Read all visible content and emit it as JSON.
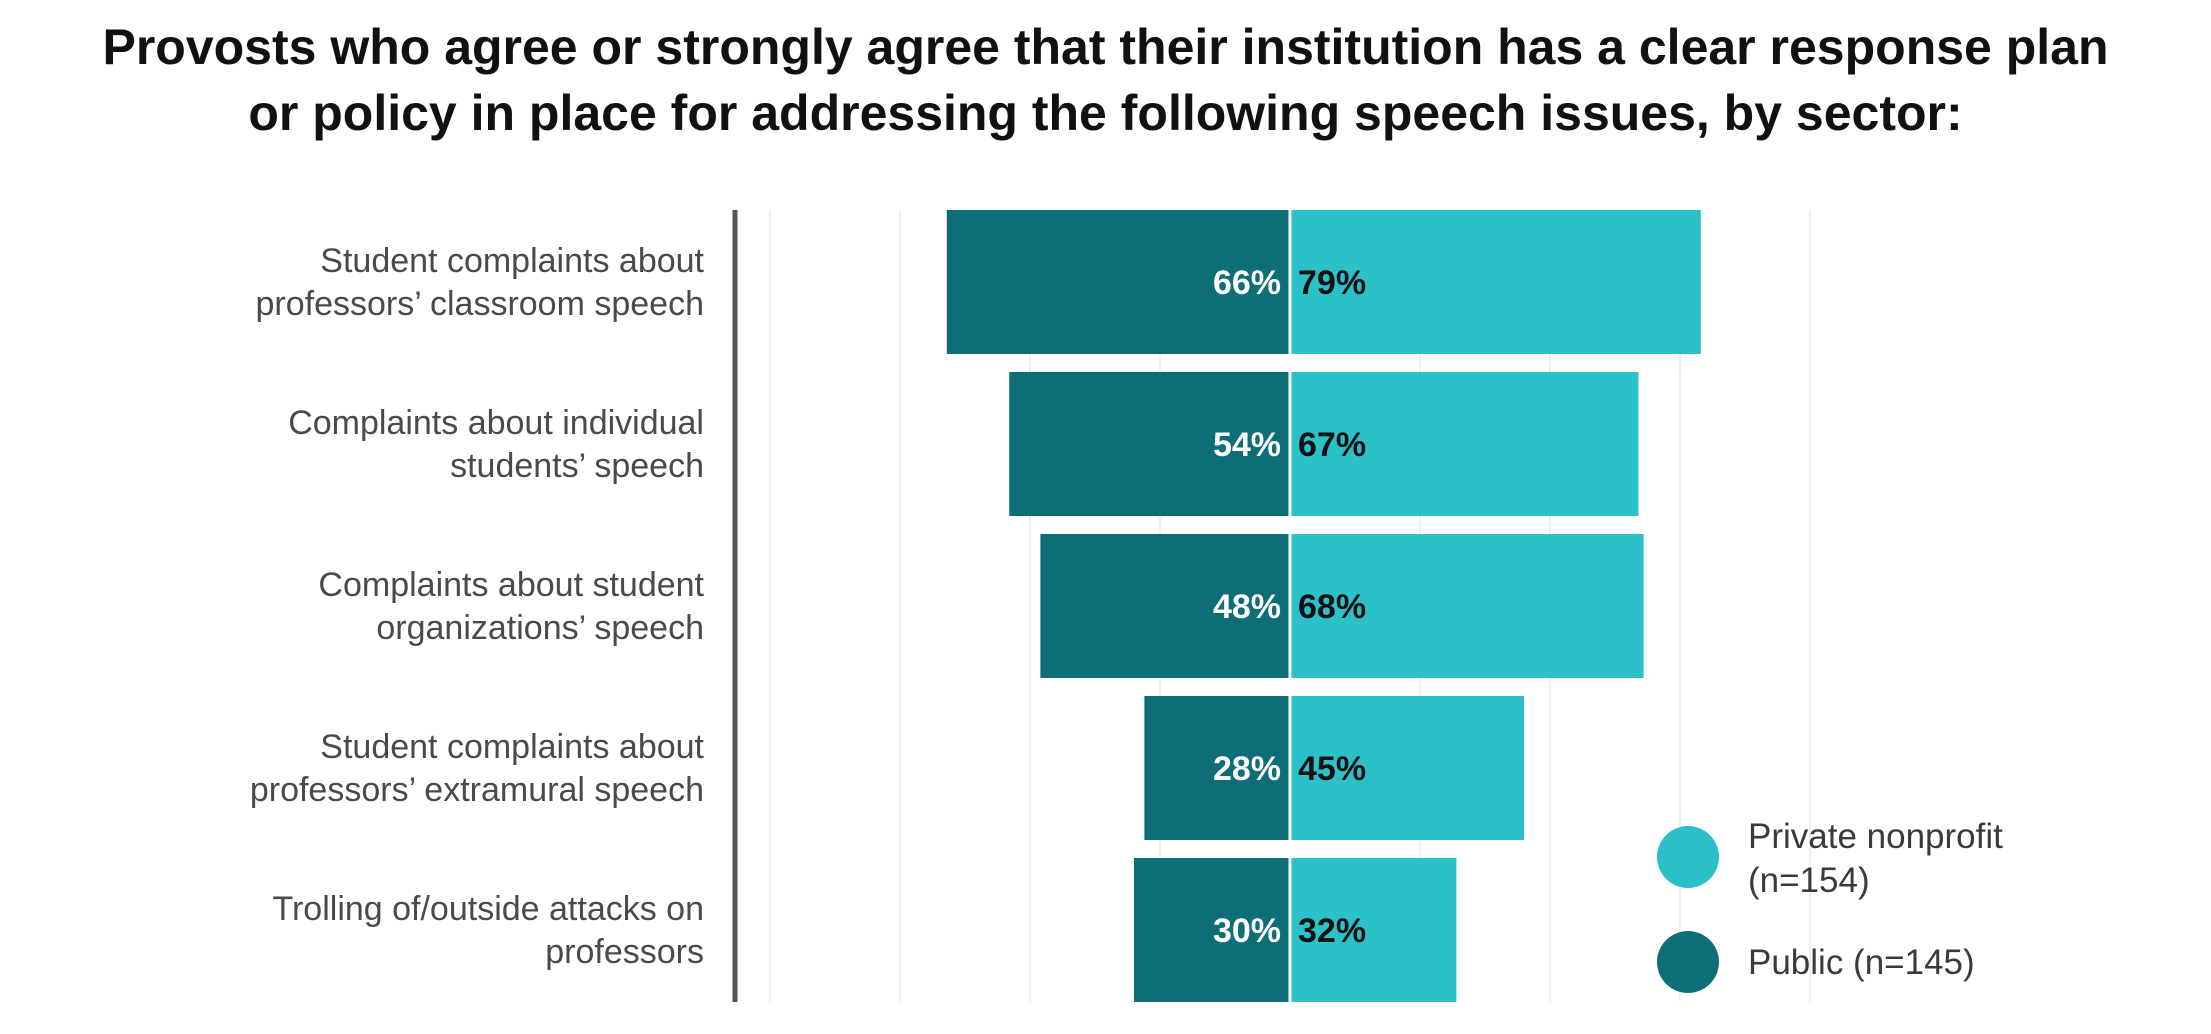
{
  "chart_data": {
    "type": "bar",
    "orientation": "horizontal-diverging",
    "title_lines": [
      "Provosts who agree or strongly agree that their institution has a clear response plan",
      "or policy in place for addressing the following speech issues, by sector:"
    ],
    "categories": [
      [
        "Student complaints about",
        "professors’ classroom speech"
      ],
      [
        "Complaints about individual",
        "students’ speech"
      ],
      [
        "Complaints about student",
        "organizations’ speech"
      ],
      [
        "Student complaints about",
        "professors’ extramural speech"
      ],
      [
        "Trolling of/outside attacks on",
        "professors"
      ]
    ],
    "series": [
      {
        "name": "Public (n=145)",
        "values": [
          66,
          54,
          48,
          28,
          30
        ],
        "color": "#0d6e78",
        "label_color": "#ffffff",
        "side": "left"
      },
      {
        "name": "Private nonprofit (n=154)",
        "legend_lines": [
          "Private nonprofit",
          "(n=154)"
        ],
        "values": [
          79,
          67,
          68,
          45,
          32
        ],
        "color": "#2cc0c8",
        "label_color": "#111111",
        "side": "right"
      }
    ],
    "value_suffix": "%",
    "xlim": [
      0,
      100
    ],
    "grid": true,
    "legend_position": "bottom-right"
  }
}
